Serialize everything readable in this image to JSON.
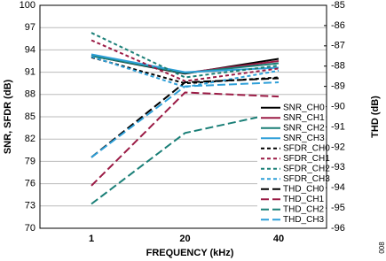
{
  "chart_data": {
    "type": "line",
    "xlabel": "FREQUENCY (kHz)",
    "ylabel": "SNR, SFDR (dB)",
    "y2label": "THD (dB)",
    "side_note": "008",
    "categories": [
      "1",
      "20",
      "40"
    ],
    "ylim": [
      70,
      100
    ],
    "yticks": [
      70,
      73,
      76,
      79,
      82,
      85,
      88,
      91,
      94,
      97,
      100
    ],
    "y2lim": [
      -96,
      -85
    ],
    "y2ticks": [
      -96,
      -95,
      -94,
      -93,
      -92,
      -91,
      -90,
      -89,
      -88,
      -87,
      -86,
      -85
    ],
    "grid": true,
    "legend": "lower right",
    "series": [
      {
        "name": "SNR_CH0",
        "color": "#000000",
        "dash": "solid",
        "values": [
          93.2,
          90.8,
          92.8
        ]
      },
      {
        "name": "SNR_CH1",
        "color": "#9b1b45",
        "dash": "solid",
        "values": [
          93.3,
          90.9,
          92.5
        ]
      },
      {
        "name": "SNR_CH2",
        "color": "#1a7f77",
        "dash": "solid",
        "values": [
          93.2,
          90.9,
          92.2
        ]
      },
      {
        "name": "SNR_CH3",
        "color": "#2e9fd8",
        "dash": "solid",
        "values": [
          93.4,
          91.0,
          91.6
        ]
      },
      {
        "name": "SFDR_CH0",
        "color": "#000000",
        "dash": "short",
        "values": [
          93.0,
          89.5,
          90.3
        ]
      },
      {
        "name": "SFDR_CH1",
        "color": "#9b1b45",
        "dash": "short",
        "values": [
          95.3,
          89.8,
          91.5
        ]
      },
      {
        "name": "SFDR_CH2",
        "color": "#1a7f77",
        "dash": "short",
        "values": [
          96.3,
          90.3,
          91.9
        ]
      },
      {
        "name": "SFDR_CH3",
        "color": "#2e9fd8",
        "dash": "short",
        "values": [
          93.1,
          89.0,
          91.2
        ]
      },
      {
        "name": "THD_CH0",
        "color": "#000000",
        "dash": "long",
        "axis": "y2",
        "values": [
          -92.5,
          -88.8,
          -88.6
        ]
      },
      {
        "name": "THD_CH1",
        "color": "#9b1b45",
        "dash": "long",
        "axis": "y2",
        "values": [
          -93.9,
          -89.3,
          -89.5
        ]
      },
      {
        "name": "THD_CH2",
        "color": "#1a7f77",
        "dash": "long",
        "axis": "y2",
        "values": [
          -94.8,
          -91.3,
          -90.3
        ]
      },
      {
        "name": "THD_CH3",
        "color": "#2e9fd8",
        "dash": "long",
        "axis": "y2",
        "values": [
          -92.5,
          -89.0,
          -88.8
        ]
      }
    ]
  }
}
